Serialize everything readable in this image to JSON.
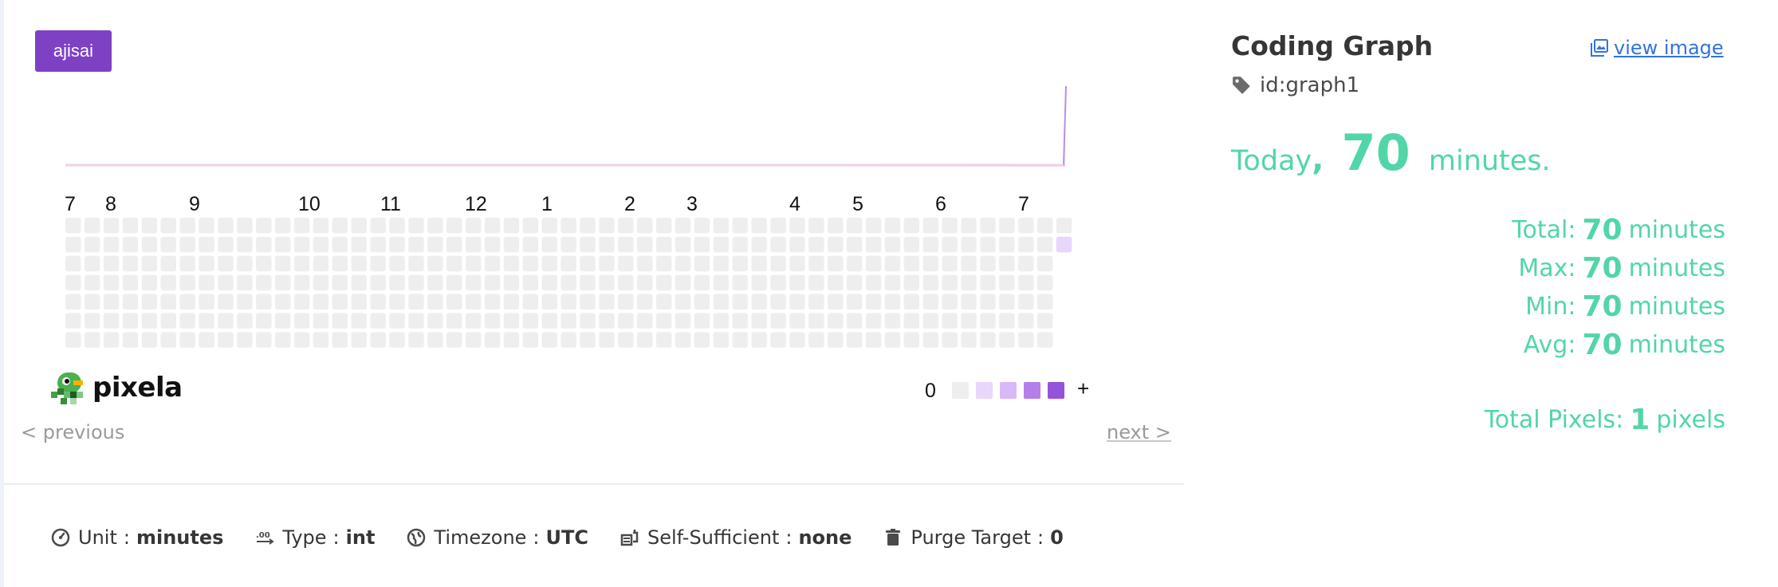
{
  "theme": {
    "label": "ajisai"
  },
  "graph": {
    "month_labels": [
      "7",
      "8",
      "9",
      "10",
      "11",
      "12",
      "1",
      "2",
      "3",
      "4",
      "5",
      "6",
      "7"
    ],
    "filled_pixels": [
      {
        "value": 70,
        "level": 1
      }
    ],
    "today_line_value": 70,
    "colors": {
      "empty": "#eeeeee",
      "level1": "#e8d6fb",
      "level2": "#d9b8f7",
      "level3": "#b57ee8",
      "level4": "#9552dc",
      "level5": "#7020c6",
      "line": "#b98de8",
      "line_fill": "#f3e5f9"
    }
  },
  "brand": {
    "name": "pixela"
  },
  "legend": {
    "min_label": "0",
    "max_label": "+"
  },
  "nav": {
    "previous": "< previous",
    "next": "next >"
  },
  "meta": [
    {
      "icon": "gauge-icon",
      "label": "Unit",
      "value": "minutes"
    },
    {
      "icon": "number-type-icon",
      "label": "Type",
      "value": "int"
    },
    {
      "icon": "globe-icon",
      "label": "Timezone",
      "value": "UTC"
    },
    {
      "icon": "self-sufficient-icon",
      "label": "Self-Sufficient",
      "value": "none"
    },
    {
      "icon": "trash-icon",
      "label": "Purge Target",
      "value": "0"
    }
  ],
  "sidebar": {
    "title": "Coding Graph",
    "view_image": "view image",
    "graph_id": "id:graph1",
    "today": {
      "prefix": "Today",
      "comma": ",",
      "value": "70",
      "suffix": "minutes."
    },
    "stats": [
      {
        "label": "Total:",
        "value": "70",
        "unit": "minutes"
      },
      {
        "label": "Max:",
        "value": "70",
        "unit": "minutes"
      },
      {
        "label": "Min:",
        "value": "70",
        "unit": "minutes"
      },
      {
        "label": "Avg:",
        "value": "70",
        "unit": "minutes"
      }
    ],
    "total_pixels": {
      "label": "Total Pixels:",
      "value": "1",
      "unit": "pixels"
    }
  },
  "accent_color": "#52d6a7",
  "badge_color": "#7e41c4"
}
